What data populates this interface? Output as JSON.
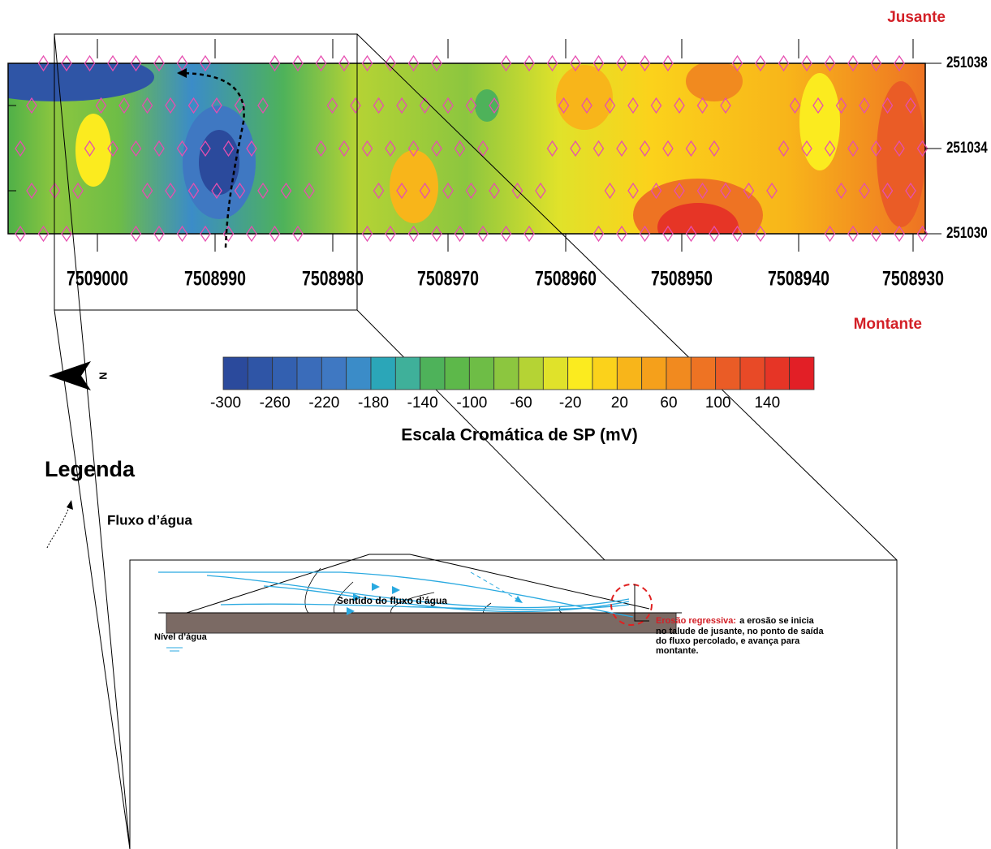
{
  "map": {
    "top_label": "Jusante",
    "bottom_label": "Montante",
    "y_labels": [
      251038,
      251034,
      251030
    ],
    "x_labels": [
      7509000,
      7508990,
      7508980,
      7508970,
      7508960,
      7508950,
      7508940,
      7508930
    ]
  },
  "colorbar": {
    "title": "Escala Cromática de SP (mV)",
    "labels": [
      -300,
      -260,
      -220,
      -180,
      -140,
      -100,
      -60,
      -20,
      20,
      60,
      100,
      140
    ],
    "colors": [
      "#2b4a9c",
      "#2f55a6",
      "#3360b0",
      "#3a6cba",
      "#3f78c2",
      "#3b8cc8",
      "#2ba6b8",
      "#3fb09a",
      "#4eb25a",
      "#5db84a",
      "#6ebd46",
      "#8cc63f",
      "#b5d334",
      "#e0e22a",
      "#fbeb1f",
      "#fbd21b",
      "#f8b51a",
      "#f5a01b",
      "#f18a1f",
      "#ee7323",
      "#ea5c26",
      "#e84a27",
      "#e63526",
      "#e21f26"
    ]
  },
  "legend": {
    "title": "Legenda",
    "flow": "Fluxo d’água"
  },
  "diagram": {
    "flow_direction": "Sentido do fluxo d’água",
    "water_level": "Nível d’água",
    "erosion": {
      "title": "Erosão regressiva:",
      "lines": [
        "a erosão se inicia",
        "no talude de jusante, no ponto de saída",
        "do fluxo percolado, e avança para",
        "montante."
      ]
    }
  }
}
